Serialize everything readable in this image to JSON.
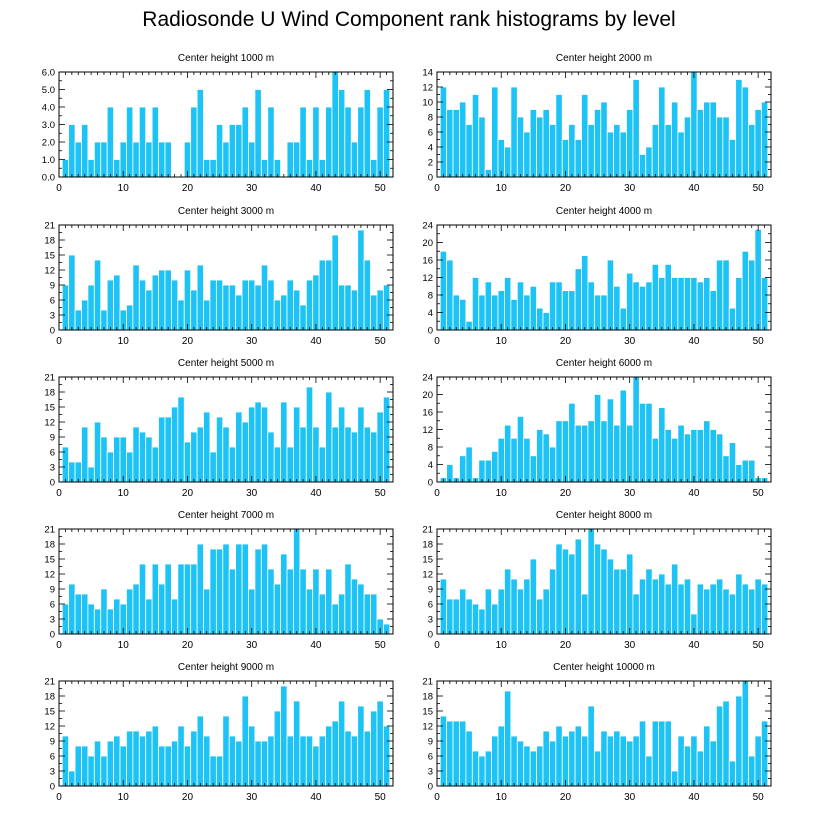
{
  "page": {
    "title": "Radiosonde U Wind Component rank histograms by level"
  },
  "colors": {
    "bar": "#1ec3f5",
    "axis": "#000000"
  },
  "chart_data": [
    {
      "type": "bar",
      "title": "Center height 1000 m",
      "xlim": [
        0,
        52
      ],
      "xticks": [
        0,
        10,
        20,
        30,
        40,
        50
      ],
      "ylim": [
        0,
        6
      ],
      "yticks": [
        0,
        1,
        2,
        3,
        4,
        5,
        6
      ],
      "ytick_labels": [
        "0.0",
        "1.0",
        "2.0",
        "3.0",
        "4.0",
        "5.0",
        "6.0"
      ],
      "values": [
        1,
        3,
        2,
        3,
        1,
        2,
        2,
        4,
        1,
        2,
        4,
        2,
        4,
        2,
        4,
        2,
        2,
        0,
        0,
        2,
        4,
        5,
        1,
        1,
        3,
        2,
        3,
        3,
        4,
        2,
        5,
        1,
        4,
        1,
        0,
        2,
        2,
        4,
        1,
        4,
        1,
        4,
        6,
        5,
        4,
        2,
        4,
        5,
        1,
        4,
        5
      ]
    },
    {
      "type": "bar",
      "title": "Center height 2000 m",
      "xlim": [
        0,
        52
      ],
      "xticks": [
        0,
        10,
        20,
        30,
        40,
        50
      ],
      "ylim": [
        0,
        14
      ],
      "yticks": [
        0,
        2,
        4,
        6,
        8,
        10,
        12,
        14
      ],
      "ytick_labels": [
        "0",
        "2",
        "4",
        "6",
        "8",
        "10",
        "12",
        "14"
      ],
      "values": [
        12,
        9,
        9,
        10,
        7,
        11,
        8,
        1,
        12,
        5,
        4,
        12,
        8,
        6,
        9,
        8,
        9,
        7,
        11,
        5,
        7,
        5,
        11,
        7,
        9,
        10,
        6,
        7,
        6,
        9,
        13,
        3,
        4,
        7,
        12,
        7,
        10,
        6,
        8,
        14,
        9,
        10,
        10,
        8,
        8,
        5,
        13,
        12,
        7,
        9,
        10
      ]
    },
    {
      "type": "bar",
      "title": "Center height 3000 m",
      "xlim": [
        0,
        52
      ],
      "xticks": [
        0,
        10,
        20,
        30,
        40,
        50
      ],
      "ylim": [
        0,
        21
      ],
      "yticks": [
        0,
        3,
        6,
        9,
        12,
        15,
        18,
        21
      ],
      "ytick_labels": [
        "0",
        "3",
        "6",
        "9",
        "12",
        "15",
        "18",
        "21"
      ],
      "values": [
        9,
        15,
        4,
        6,
        9,
        14,
        4,
        10,
        11,
        4,
        5,
        13,
        10,
        8,
        11,
        12,
        12,
        10,
        6,
        12,
        8,
        13,
        6,
        10,
        10,
        9,
        9,
        7,
        10,
        10,
        9,
        13,
        10,
        6,
        7,
        10,
        8,
        5,
        10,
        11,
        14,
        14,
        19,
        9,
        9,
        8,
        20,
        14,
        7,
        8,
        9
      ]
    },
    {
      "type": "bar",
      "title": "Center height 4000 m",
      "xlim": [
        0,
        52
      ],
      "xticks": [
        0,
        10,
        20,
        30,
        40,
        50
      ],
      "ylim": [
        0,
        24
      ],
      "yticks": [
        0,
        4,
        8,
        12,
        16,
        20,
        24
      ],
      "ytick_labels": [
        "0",
        "4",
        "8",
        "12",
        "16",
        "20",
        "24"
      ],
      "values": [
        18,
        16,
        8,
        7,
        2,
        12,
        8,
        11,
        8,
        9,
        12,
        7,
        11,
        8,
        10,
        5,
        4,
        11,
        11,
        9,
        9,
        14,
        17,
        11,
        8,
        8,
        16,
        10,
        5,
        13,
        11,
        10,
        11,
        15,
        12,
        15,
        12,
        12,
        12,
        12,
        11,
        12,
        9,
        16,
        16,
        5,
        12,
        18,
        16,
        23,
        12
      ]
    },
    {
      "type": "bar",
      "title": "Center height 5000 m",
      "xlim": [
        0,
        52
      ],
      "xticks": [
        0,
        10,
        20,
        30,
        40,
        50
      ],
      "ylim": [
        0,
        21
      ],
      "yticks": [
        0,
        3,
        6,
        9,
        12,
        15,
        18,
        21
      ],
      "ytick_labels": [
        "0",
        "3",
        "6",
        "9",
        "12",
        "15",
        "18",
        "21"
      ],
      "values": [
        7,
        4,
        4,
        11,
        3,
        12,
        9,
        6,
        9,
        9,
        6,
        11,
        10,
        9,
        7,
        13,
        13,
        15,
        17,
        8,
        10,
        11,
        14,
        6,
        13,
        11,
        7,
        14,
        12,
        15,
        16,
        15,
        10,
        7,
        16,
        7,
        15,
        11,
        19,
        11,
        7,
        18,
        11,
        15,
        11,
        10,
        15,
        11,
        10,
        14,
        17
      ]
    },
    {
      "type": "bar",
      "title": "Center height 6000 m",
      "xlim": [
        0,
        52
      ],
      "xticks": [
        0,
        10,
        20,
        30,
        40,
        50
      ],
      "ylim": [
        0,
        24
      ],
      "yticks": [
        0,
        4,
        8,
        12,
        16,
        20,
        24
      ],
      "ytick_labels": [
        "0",
        "4",
        "8",
        "12",
        "16",
        "20",
        "24"
      ],
      "values": [
        1,
        4,
        1,
        6,
        8,
        1,
        5,
        5,
        7,
        10,
        13,
        10,
        15,
        10,
        6,
        12,
        11,
        8,
        14,
        14,
        18,
        13,
        13,
        14,
        20,
        14,
        19,
        13,
        21,
        13,
        24,
        18,
        18,
        10,
        17,
        12,
        10,
        13,
        11,
        12,
        12,
        14,
        12,
        11,
        6,
        9,
        4,
        5,
        5,
        1,
        1
      ]
    },
    {
      "type": "bar",
      "title": "Center height 7000 m",
      "xlim": [
        0,
        52
      ],
      "xticks": [
        0,
        10,
        20,
        30,
        40,
        50
      ],
      "ylim": [
        0,
        21
      ],
      "yticks": [
        0,
        3,
        6,
        9,
        12,
        15,
        18,
        21
      ],
      "ytick_labels": [
        "0",
        "3",
        "6",
        "9",
        "12",
        "15",
        "18",
        "21"
      ],
      "values": [
        6,
        10,
        8,
        8,
        6,
        5,
        9,
        5,
        7,
        6,
        9,
        10,
        14,
        7,
        14,
        10,
        14,
        7,
        14,
        14,
        14,
        18,
        9,
        17,
        17,
        18,
        13,
        18,
        18,
        9,
        17,
        18,
        13,
        10,
        16,
        13,
        21,
        13,
        9,
        13,
        8,
        13,
        6,
        8,
        14,
        11,
        10,
        8,
        8,
        3,
        2
      ]
    },
    {
      "type": "bar",
      "title": "Center height 8000 m",
      "xlim": [
        0,
        52
      ],
      "xticks": [
        0,
        10,
        20,
        30,
        40,
        50
      ],
      "ylim": [
        0,
        21
      ],
      "yticks": [
        0,
        3,
        6,
        9,
        12,
        15,
        18,
        21
      ],
      "ytick_labels": [
        "0",
        "3",
        "6",
        "9",
        "12",
        "15",
        "18",
        "21"
      ],
      "values": [
        11,
        7,
        7,
        9,
        7,
        6,
        5,
        9,
        6,
        9,
        13,
        11,
        9,
        11,
        15,
        7,
        9,
        13,
        18,
        17,
        16,
        19,
        8,
        21,
        18,
        17,
        15,
        13,
        13,
        16,
        8,
        11,
        13,
        11,
        12,
        10,
        14,
        10,
        11,
        4,
        10,
        9,
        10,
        11,
        9,
        8,
        12,
        10,
        9,
        11,
        10
      ]
    },
    {
      "type": "bar",
      "title": "Center height 9000 m",
      "xlim": [
        0,
        52
      ],
      "xticks": [
        0,
        10,
        20,
        30,
        40,
        50
      ],
      "ylim": [
        0,
        21
      ],
      "yticks": [
        0,
        3,
        6,
        9,
        12,
        15,
        18,
        21
      ],
      "ytick_labels": [
        "0",
        "3",
        "6",
        "9",
        "12",
        "15",
        "18",
        "21"
      ],
      "values": [
        10,
        3,
        8,
        8,
        6,
        9,
        6,
        9,
        10,
        8,
        11,
        11,
        10,
        11,
        12,
        8,
        8,
        9,
        12,
        8,
        11,
        14,
        10,
        6,
        6,
        14,
        10,
        9,
        18,
        12,
        9,
        9,
        10,
        15,
        20,
        10,
        17,
        10,
        10,
        8,
        10,
        12,
        13,
        17,
        11,
        10,
        16,
        11,
        15,
        17,
        12
      ]
    },
    {
      "type": "bar",
      "title": "Center height 10000 m",
      "xlim": [
        0,
        52
      ],
      "xticks": [
        0,
        10,
        20,
        30,
        40,
        50
      ],
      "ylim": [
        0,
        21
      ],
      "yticks": [
        0,
        3,
        6,
        9,
        12,
        15,
        18,
        21
      ],
      "ytick_labels": [
        "0",
        "3",
        "6",
        "9",
        "12",
        "15",
        "18",
        "21"
      ],
      "values": [
        14,
        13,
        13,
        13,
        11,
        7,
        6,
        7,
        10,
        12,
        19,
        10,
        9,
        8,
        7,
        8,
        11,
        9,
        12,
        10,
        11,
        12,
        10,
        16,
        7,
        11,
        10,
        11,
        10,
        9,
        10,
        13,
        6,
        13,
        13,
        13,
        3,
        10,
        8,
        10,
        7,
        12,
        9,
        16,
        17,
        5,
        18,
        21,
        6,
        10,
        13
      ]
    }
  ]
}
